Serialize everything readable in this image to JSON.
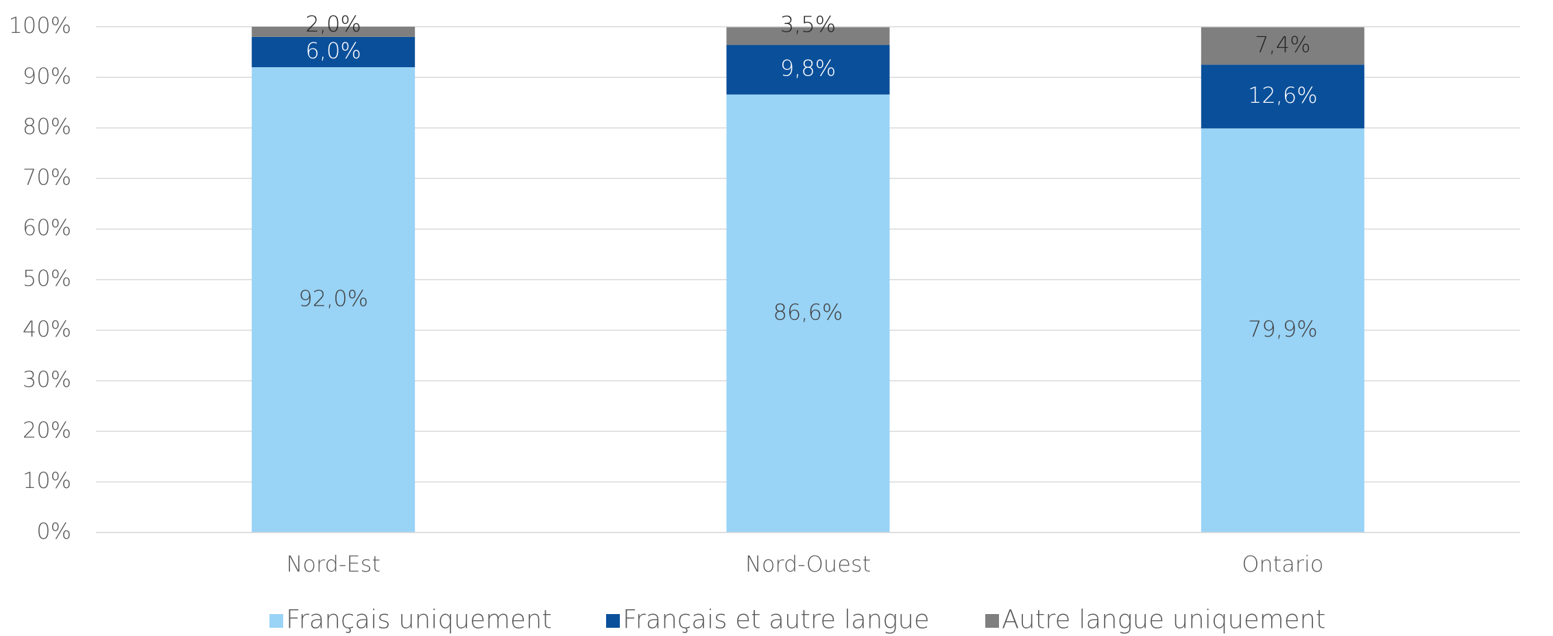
{
  "chart_data": {
    "type": "stacked_bar",
    "categories": [
      "Nord-Est",
      "Nord-Ouest",
      "Ontario"
    ],
    "series": [
      {
        "name": "Français uniquement",
        "color": "#99d3f6",
        "values": [
          92.0,
          86.6,
          79.9
        ],
        "value_labels": [
          "92,0%",
          "86,6%",
          "79,9%"
        ]
      },
      {
        "name": "Français et autre langue",
        "color": "#0a4f9a",
        "values": [
          6.0,
          9.8,
          12.6
        ],
        "value_labels": [
          "6,0%",
          "9,8%",
          "12,6%"
        ]
      },
      {
        "name": "Autre langue uniquement",
        "color": "#7f7f7f",
        "values": [
          2.0,
          3.5,
          7.4
        ],
        "value_labels": [
          "2,0%",
          "3,5%",
          "7,4%"
        ]
      }
    ],
    "ylim": [
      0,
      100
    ],
    "yticks": [
      {
        "value": 0,
        "label": "0%"
      },
      {
        "value": 10,
        "label": "10%"
      },
      {
        "value": 20,
        "label": "20%"
      },
      {
        "value": 30,
        "label": "30%"
      },
      {
        "value": 40,
        "label": "40%"
      },
      {
        "value": 50,
        "label": "50%"
      },
      {
        "value": 60,
        "label": "60%"
      },
      {
        "value": 70,
        "label": "70%"
      },
      {
        "value": 80,
        "label": "80%"
      },
      {
        "value": 90,
        "label": "90%"
      },
      {
        "value": 100,
        "label": "100%"
      }
    ],
    "grid": true,
    "legend": "bottom"
  }
}
